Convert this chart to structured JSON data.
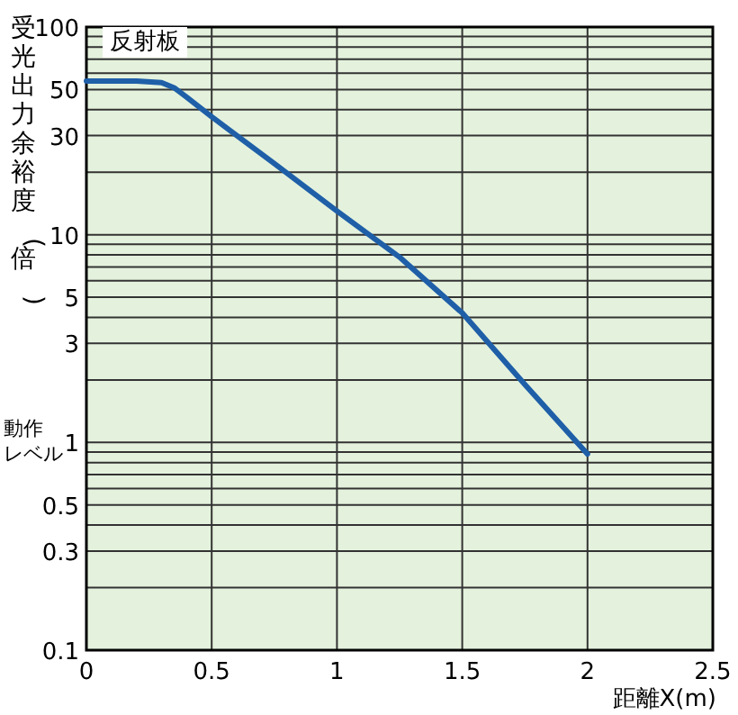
{
  "chart_data": {
    "type": "line",
    "xlabel": "距離X(m)",
    "ylabel": "受光出力余裕度(倍)",
    "annotations": [
      "反射板",
      "動作レベル"
    ],
    "x": [
      0,
      0.2,
      0.3,
      0.35,
      0.4,
      0.5,
      0.75,
      1.0,
      1.25,
      1.5,
      1.75,
      2.0
    ],
    "series": [
      {
        "color": "#1f5fa8",
        "values": [
          55,
          55,
          54,
          51,
          46,
          37,
          22,
          13,
          7.8,
          4.2,
          1.9,
          0.88
        ]
      }
    ],
    "xlim": [
      0,
      2.5
    ],
    "ylim": [
      0.1,
      100
    ],
    "xticks": [
      0,
      0.5,
      1,
      1.5,
      2,
      2.5
    ],
    "yticks": [
      {
        "value": 0.1,
        "label": "0.1"
      },
      {
        "value": 0.2,
        "label": null
      },
      0.3,
      {
        "value": 0.4,
        "label": null
      },
      0.5,
      {
        "value": 0.6,
        "label": null
      },
      {
        "value": 0.7,
        "label": null
      },
      {
        "value": 0.8,
        "label": null
      },
      {
        "value": 0.9,
        "label": null
      },
      1,
      {
        "value": 2,
        "label": null
      },
      3,
      {
        "value": 4,
        "label": null
      },
      5,
      {
        "value": 6,
        "label": null
      },
      {
        "value": 7,
        "label": null
      },
      {
        "value": 8,
        "label": null
      },
      {
        "value": 9,
        "label": null
      },
      10,
      {
        "value": 20,
        "label": null
      },
      30,
      {
        "value": 40,
        "label": null
      },
      50,
      {
        "value": 60,
        "label": null
      },
      {
        "value": 70,
        "label": null
      },
      {
        "value": 80,
        "label": null
      },
      {
        "value": 90,
        "label": null
      },
      100
    ],
    "log": "y",
    "grid": true
  }
}
